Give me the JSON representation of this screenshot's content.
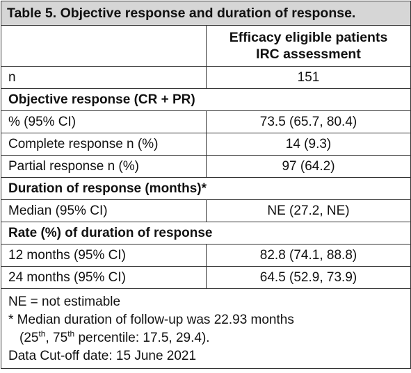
{
  "title": "Table 5. Objective response and duration of response.",
  "table": {
    "header": {
      "column_lines": [
        "Efficacy eligible patients",
        "IRC assessment"
      ]
    },
    "rows": [
      {
        "label": "n",
        "value": "151"
      },
      {
        "section": "Objective response (CR + PR)"
      },
      {
        "label": "% (95% CI)",
        "value": "73.5 (65.7, 80.4)"
      },
      {
        "label": "Complete response n (%)",
        "value": "14 (9.3)"
      },
      {
        "label": "Partial response n (%)",
        "value": "97 (64.2)"
      },
      {
        "section": "Duration of response (months)*"
      },
      {
        "label": "Median (95% CI)",
        "value": "NE (27.2, NE)"
      },
      {
        "section": "Rate (%) of duration of response"
      },
      {
        "label": "12 months (95% CI)",
        "value": "82.8 (74.1, 88.8)"
      },
      {
        "label": "24 months (95% CI)",
        "value": "64.5 (52.9, 73.9)"
      }
    ]
  },
  "footnotes": {
    "abbreviation": "NE = not estimable",
    "follow_up": [
      "* Median duration of follow-up was 22.93 months",
      "(25",
      "th",
      ", 75",
      "th",
      " percentile: 17.5, 29.4)."
    ],
    "cutoff": "Data Cut-off date: 15 June 2021"
  }
}
